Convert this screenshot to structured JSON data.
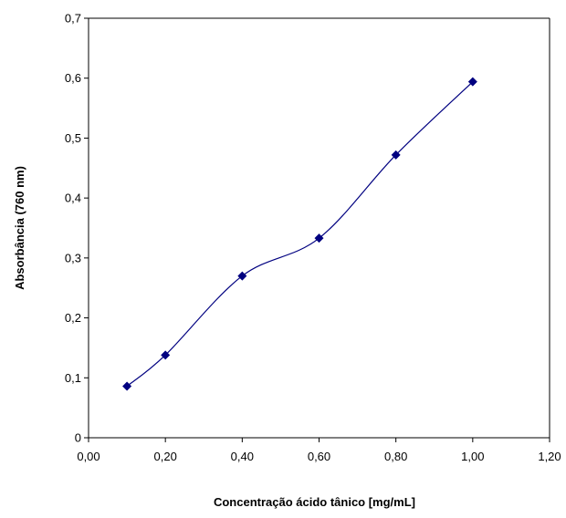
{
  "chart_data": {
    "type": "scatter",
    "title": "",
    "xlabel": "Concentração ácido tânico [mg/mL]",
    "ylabel": "Absorbância (760 nm)",
    "xlim": [
      0,
      1.2
    ],
    "ylim": [
      0,
      0.7
    ],
    "x_ticks": [
      "0,00",
      "0,20",
      "0,40",
      "0,60",
      "0,80",
      "1,00",
      "1,20"
    ],
    "y_ticks": [
      "0",
      "0,1",
      "0,2",
      "0,3",
      "0,4",
      "0,5",
      "0,6",
      "0,7"
    ],
    "grid": false,
    "legend": "none",
    "smooth_line": true,
    "series": [
      {
        "color": "#000080",
        "marker": "diamond",
        "x": [
          0.1,
          0.2,
          0.4,
          0.6,
          0.8,
          1.0
        ],
        "y": [
          0.086,
          0.138,
          0.27,
          0.333,
          0.472,
          0.594
        ]
      }
    ]
  }
}
